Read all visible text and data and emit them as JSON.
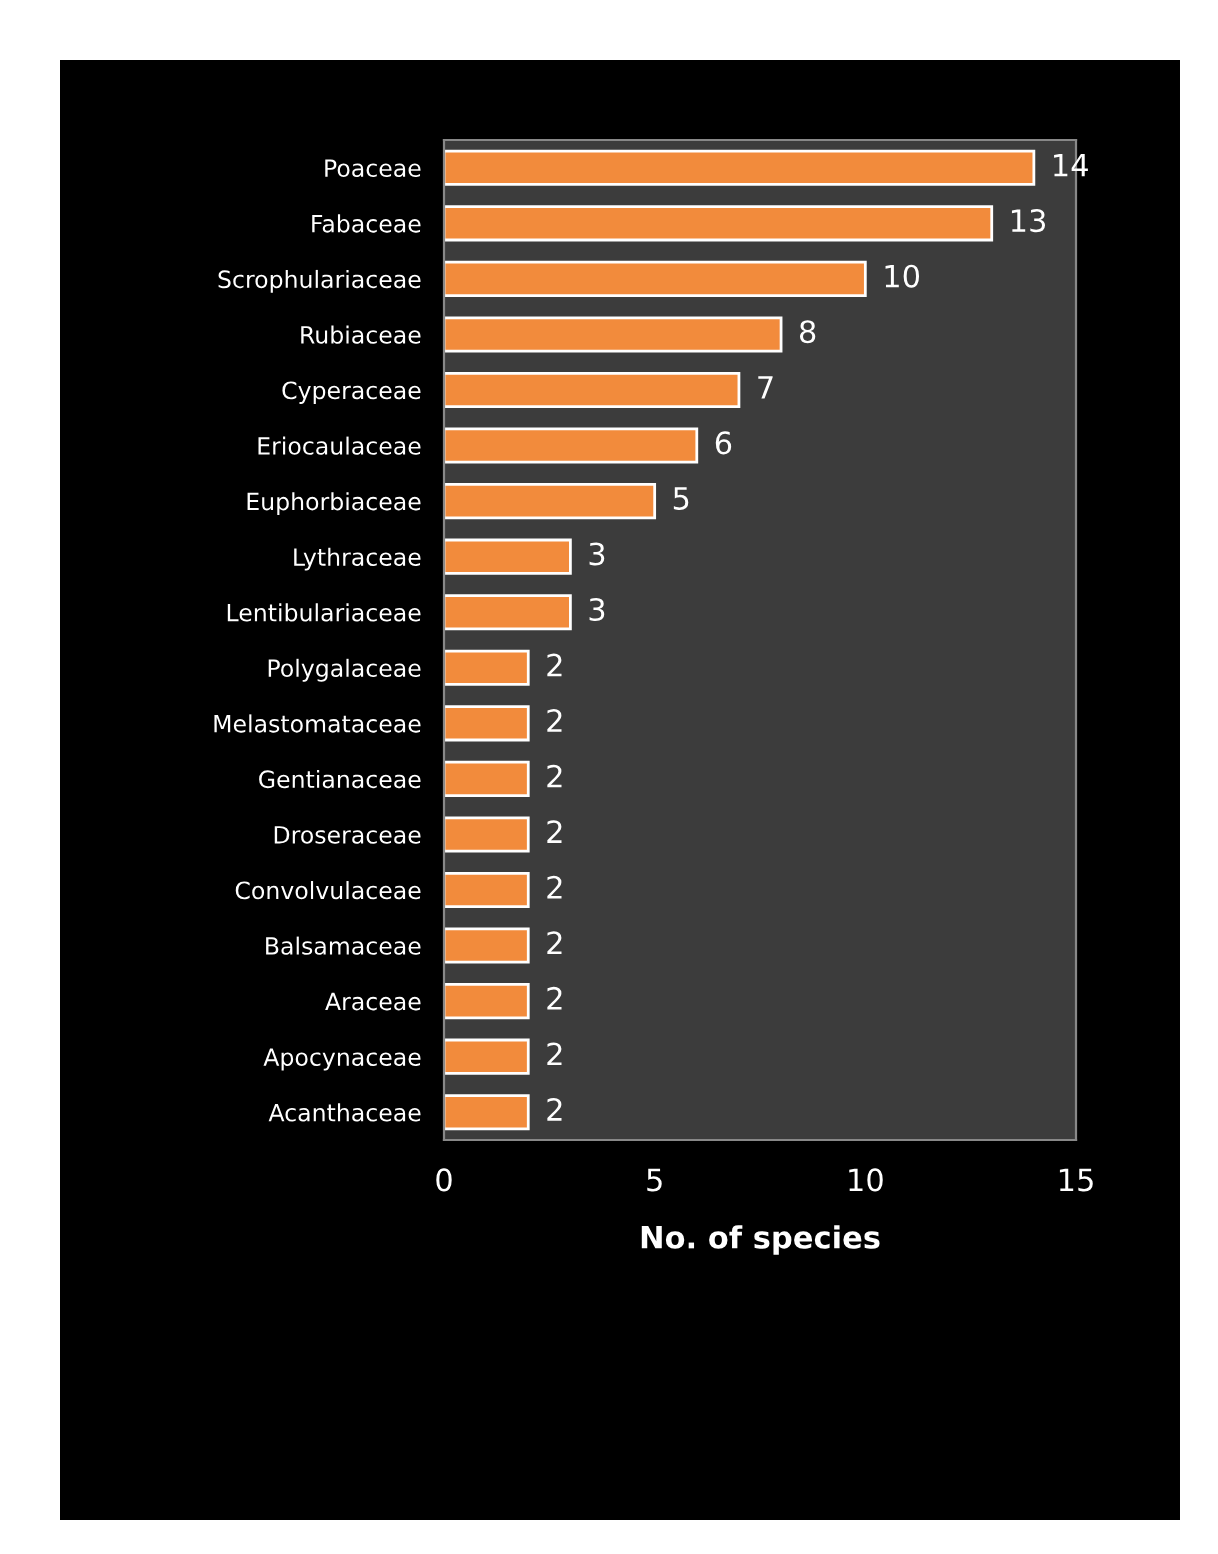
{
  "chart_data": {
    "type": "bar",
    "orientation": "horizontal",
    "xlabel": "No. of species",
    "categories": [
      "Poaceae",
      "Fabaceae",
      "Scrophulariaceae",
      "Rubiaceae",
      "Cyperaceae",
      "Eriocaulaceae",
      "Euphorbiaceae",
      "Lythraceae",
      "Lentibulariaceae",
      "Polygalaceae",
      "Melastomataceae",
      "Gentianaceae",
      "Droseraceae",
      "Convolvulaceae",
      "Balsamaceae",
      "Araceae",
      "Apocynaceae",
      "Acanthaceae"
    ],
    "values": [
      14,
      13,
      10,
      8,
      7,
      6,
      5,
      3,
      3,
      2,
      2,
      2,
      2,
      2,
      2,
      2,
      2,
      2
    ],
    "color": "#f28b3c",
    "xlim": [
      0,
      15
    ],
    "xticks": [
      0,
      5,
      10,
      15
    ],
    "data_labels": true,
    "grid": false,
    "legend": false
  }
}
